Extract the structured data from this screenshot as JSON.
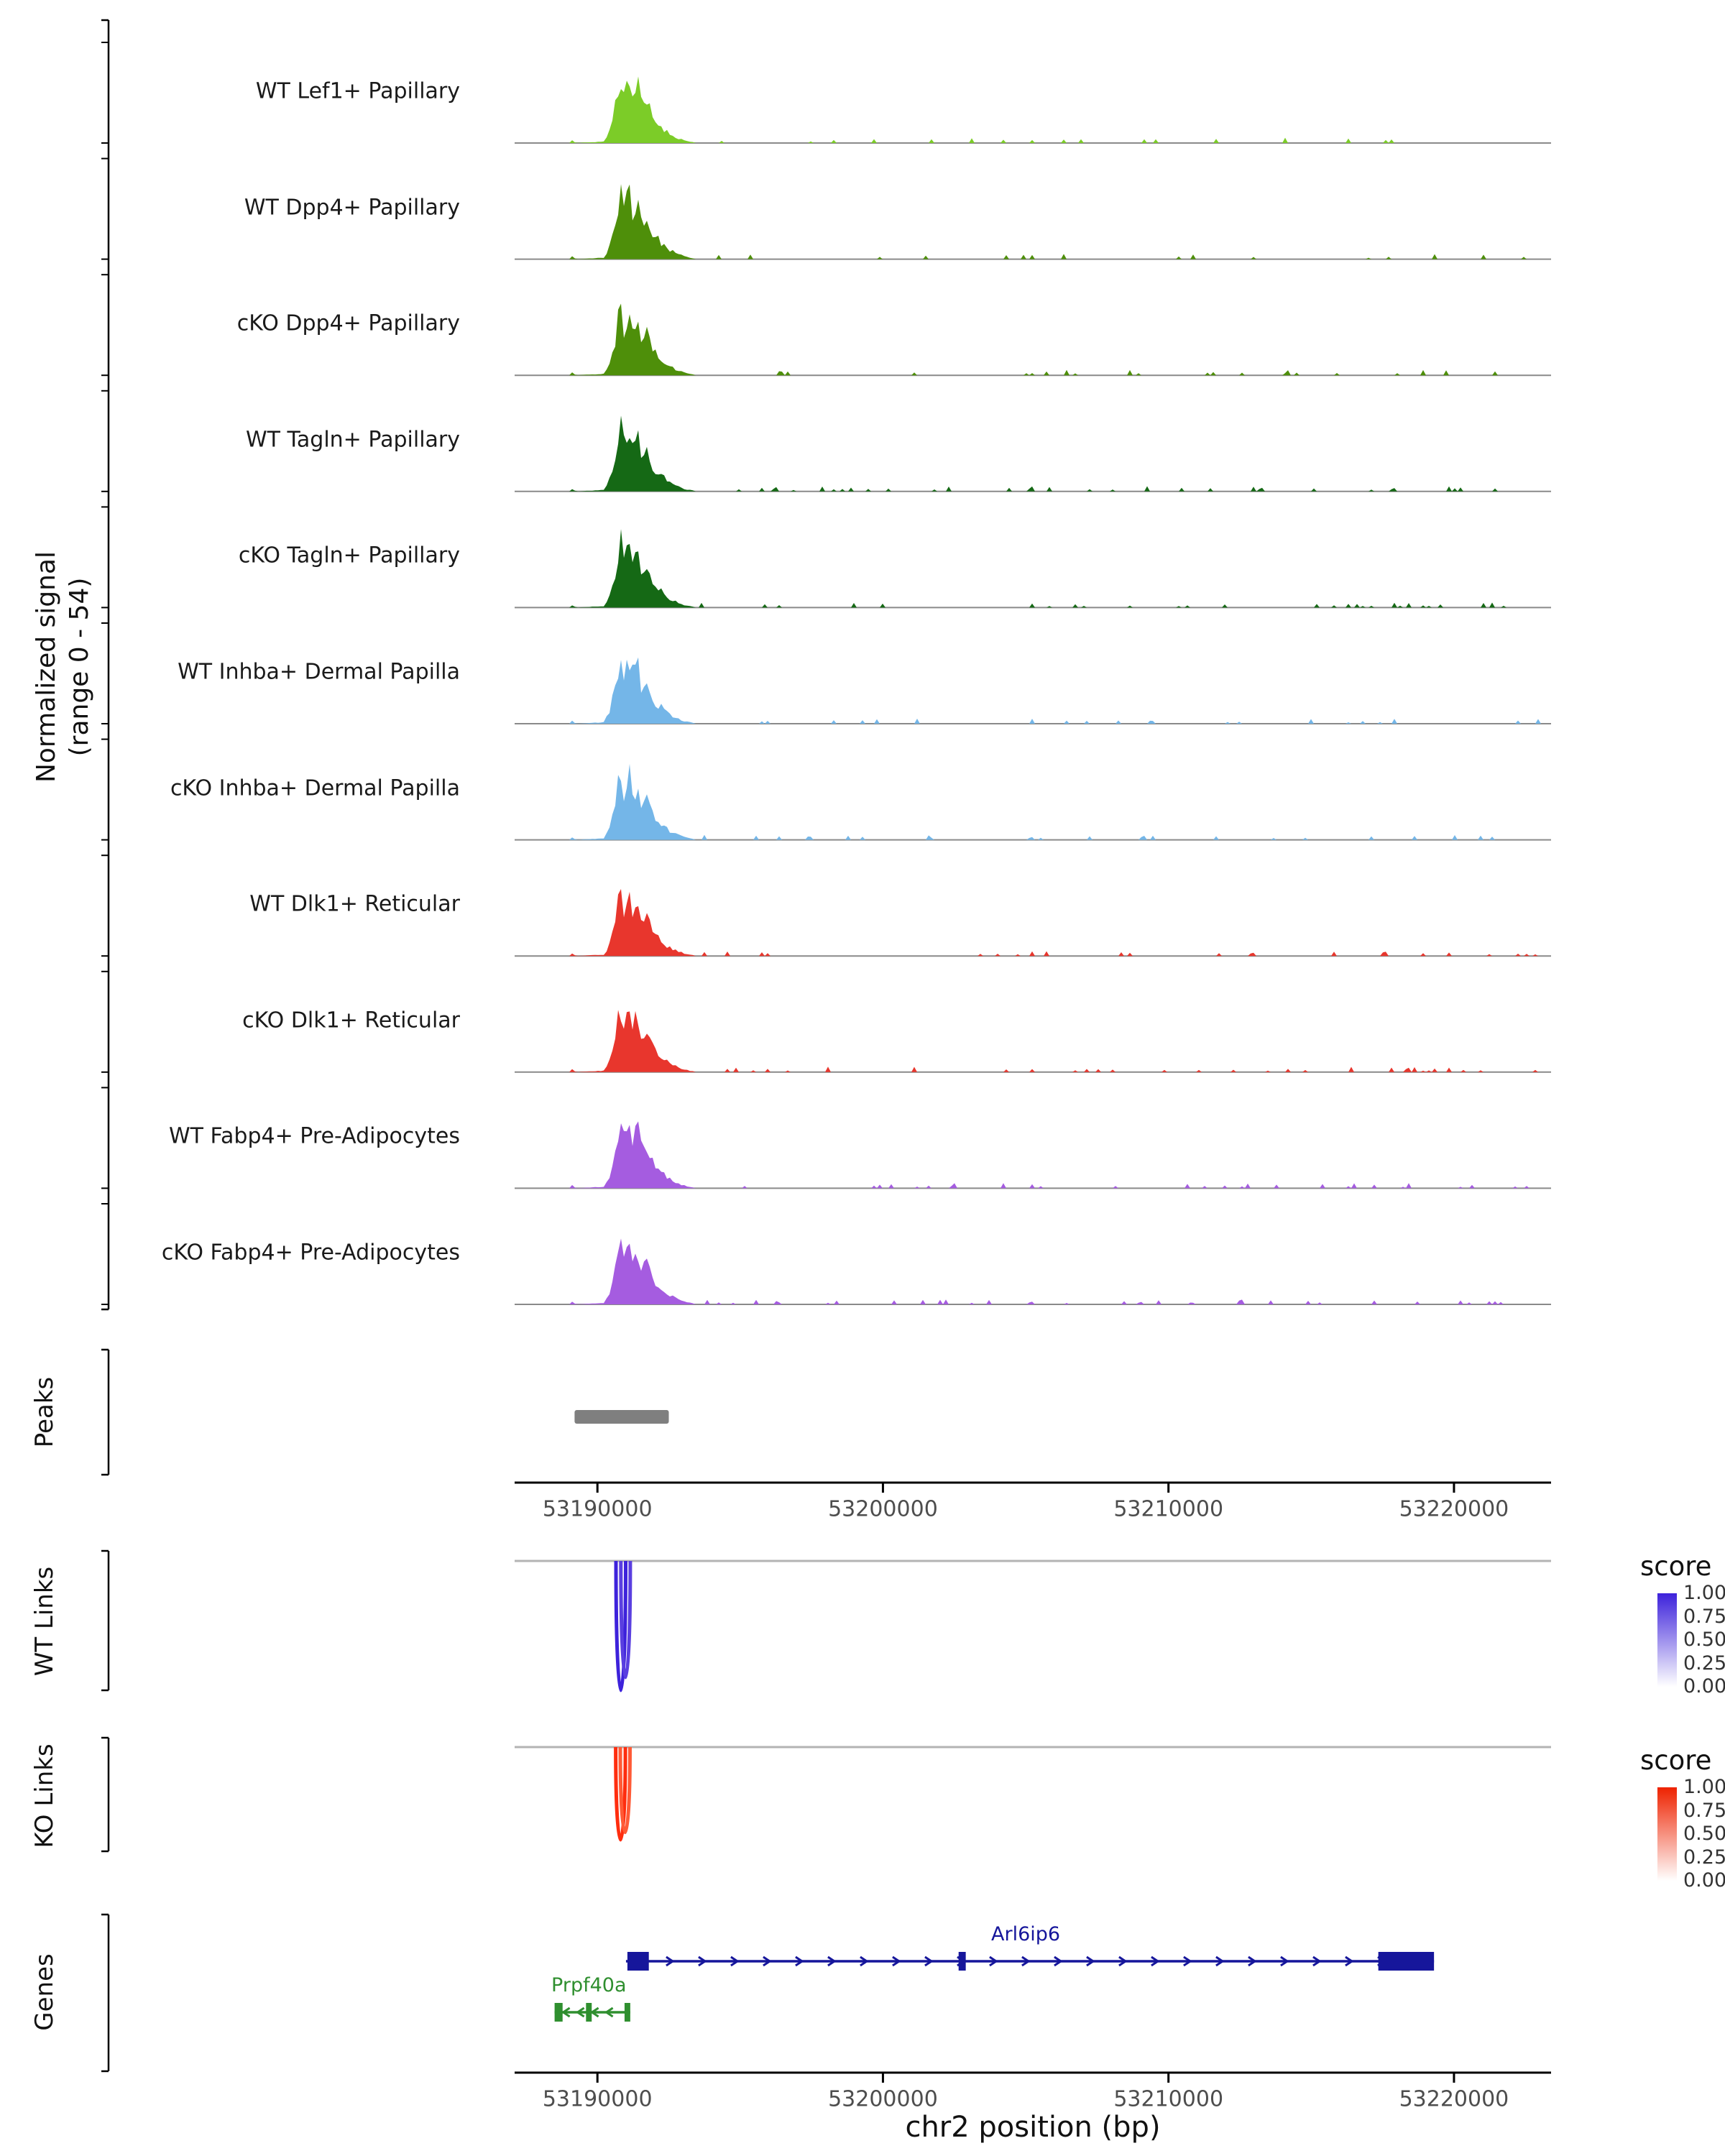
{
  "chart_data": {
    "type": "area",
    "subtype": "genome-browser-coverage-tracks",
    "region": {
      "chrom": "chr2",
      "start": 53187100,
      "end": 53223400
    },
    "x_ticks": [
      53190000,
      53200000,
      53210000,
      53220000
    ],
    "xlabel": "chr2 position (bp)",
    "signal_axis": {
      "label_line1": "Normalized signal",
      "label_line2": "(range 0 - 54)",
      "range_min": 0,
      "range_max": 54
    },
    "signal_tracks": [
      {
        "name": "WT Lef1+ Papillary",
        "color": "#7CCC28",
        "seed": 11,
        "amp": 1.0,
        "noise": 18
      },
      {
        "name": "WT Dpp4+ Papillary",
        "color": "#4E8F0A",
        "seed": 23,
        "amp": 1.0,
        "noise": 20
      },
      {
        "name": "cKO Dpp4+ Papillary",
        "color": "#4E8F0A",
        "seed": 37,
        "amp": 1.0,
        "noise": 24
      },
      {
        "name": "WT Tagln+ Papillary",
        "color": "#156915",
        "seed": 41,
        "amp": 0.96,
        "noise": 40
      },
      {
        "name": "cKO Tagln+ Papillary",
        "color": "#156915",
        "seed": 53,
        "amp": 1.0,
        "noise": 36
      },
      {
        "name": "WT Inhba+ Dermal Papilla",
        "color": "#74B6E8",
        "seed": 67,
        "amp": 1.0,
        "noise": 22
      },
      {
        "name": "cKO Inhba+ Dermal Papilla",
        "color": "#74B6E8",
        "seed": 71,
        "amp": 0.97,
        "noise": 26
      },
      {
        "name": "WT Dlk1+ Reticular",
        "color": "#E8362D",
        "seed": 83,
        "amp": 0.92,
        "noise": 26
      },
      {
        "name": "cKO Dlk1+ Reticular",
        "color": "#E8362D",
        "seed": 89,
        "amp": 1.0,
        "noise": 40
      },
      {
        "name": "WT Fabp4+ Pre-Adipocytes",
        "color": "#A55CE0",
        "seed": 97,
        "amp": 1.0,
        "noise": 30
      },
      {
        "name": "cKO Fabp4+ Pre-Adipocytes",
        "color": "#A55CE0",
        "seed": 101,
        "amp": 0.97,
        "noise": 44
      }
    ],
    "signal_cluster": {
      "anchors": [
        [
          53189100,
          0
        ],
        [
          53189150,
          0.13
        ],
        [
          53189220,
          0
        ],
        [
          53190250,
          0.02
        ],
        [
          53190450,
          0.2
        ],
        [
          53190650,
          0.55
        ],
        [
          53190800,
          0.95
        ],
        [
          53190950,
          0.6
        ],
        [
          53191100,
          1.0
        ],
        [
          53191250,
          0.62
        ],
        [
          53191400,
          0.82
        ],
        [
          53191550,
          0.5
        ],
        [
          53191750,
          0.55
        ],
        [
          53191950,
          0.32
        ],
        [
          53192200,
          0.24
        ],
        [
          53192500,
          0.13
        ],
        [
          53192800,
          0.07
        ],
        [
          53193100,
          0.03
        ],
        [
          53193400,
          0.01
        ]
      ],
      "fixed_minor_spike_bp": 53205200
    },
    "peaks_track": {
      "label": "Peaks",
      "color": "#7F7F7F",
      "peaks": [
        {
          "start": 53189200,
          "end": 53192500
        }
      ]
    },
    "links_tracks": [
      {
        "id": "wt",
        "label": "WT Links",
        "legend_top_color": "#3D22DB",
        "loops": [
          {
            "anchor1": 53190650,
            "anchor2": 53190990,
            "score": 1.0,
            "color": "#3D22DB",
            "depth": 1.0
          },
          {
            "anchor1": 53190820,
            "anchor2": 53191150,
            "score": 0.93,
            "color": "#5A3FE0",
            "depth": 0.9
          }
        ]
      },
      {
        "id": "ko",
        "label": "KO Links",
        "legend_top_color": "#EE2200",
        "loops": [
          {
            "anchor1": 53190640,
            "anchor2": 53190980,
            "score": 1.0,
            "color": "#FF2D0E",
            "depth": 1.0
          },
          {
            "anchor1": 53190800,
            "anchor2": 53191140,
            "score": 0.95,
            "color": "#FF5A36",
            "depth": 0.92
          }
        ]
      }
    ],
    "score_legend": {
      "title": "score",
      "ticks": [
        "1.00",
        "0.75",
        "0.50",
        "0.25",
        "0.00"
      ]
    },
    "genes_track": {
      "label": "Genes",
      "genes": [
        {
          "name": "Arl6ip6",
          "strand": "+",
          "color": "#16169B",
          "start": 53191000,
          "end": 53219300,
          "exons": [
            [
              53191050,
              53191800
            ],
            [
              53202650,
              53202900
            ],
            [
              53217350,
              53219300
            ]
          ],
          "label_pos": 53205000
        },
        {
          "name": "Prpf40a",
          "strand": "-",
          "color": "#2F8F2F",
          "start": 53188500,
          "end": 53191150,
          "exons": [
            [
              53188500,
              53188780
            ],
            [
              53189600,
              53189800
            ],
            [
              53190950,
              53191150
            ]
          ],
          "label_pos": 53189700
        }
      ]
    }
  }
}
